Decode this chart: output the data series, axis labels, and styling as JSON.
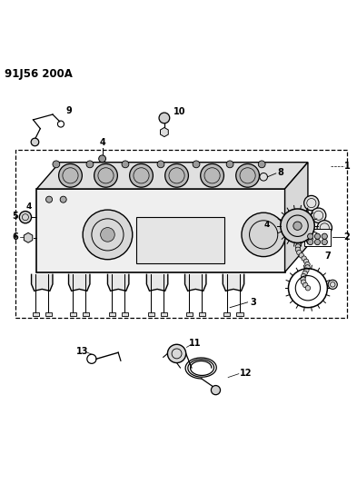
{
  "title": "91J56 200A",
  "bg_color": "#ffffff",
  "line_color": "#000000",
  "fig_width": 3.93,
  "fig_height": 5.33,
  "dpi": 100
}
